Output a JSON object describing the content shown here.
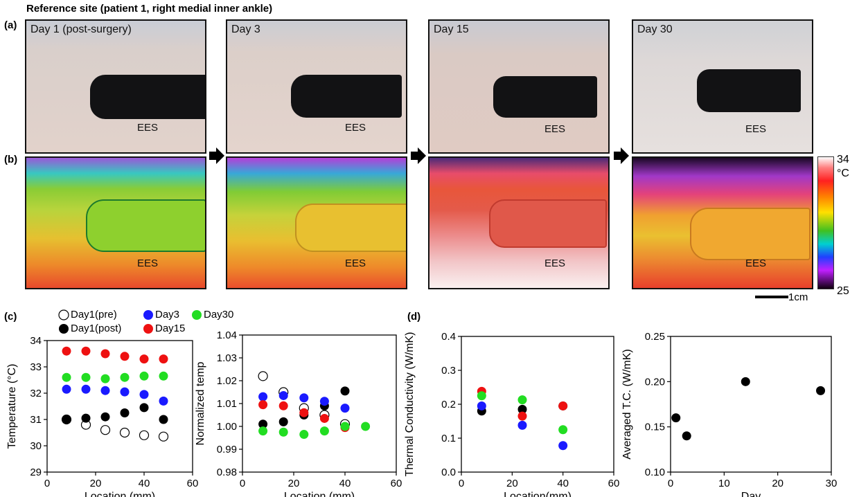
{
  "title": "Reference site (patient  1, right medial  inner ankle)",
  "labels": {
    "a": "(a)",
    "b": "(b)",
    "c": "(c)",
    "d": "(d)"
  },
  "photos": [
    {
      "day": "Day 1 (post-surgery)",
      "ees": "EES"
    },
    {
      "day": "Day 3",
      "ees": "EES"
    },
    {
      "day": "Day 15",
      "ees": "EES"
    },
    {
      "day": "Day 30",
      "ees": "EES"
    }
  ],
  "thermal_ees": "EES",
  "colorbar": {
    "max": "34",
    "unit": "°C",
    "min": "25"
  },
  "scalebar": "1cm",
  "legend": {
    "items": [
      "Day1(pre)",
      "Day3",
      "Day30",
      "Day1(post)",
      "Day15"
    ]
  },
  "chart_data": [
    {
      "type": "scatter",
      "xlabel": "Location (mm)",
      "ylabel": "Temperature (°C)",
      "xlim": [
        0,
        60
      ],
      "ylim": [
        29,
        34
      ],
      "xticks": [
        0,
        20,
        40,
        60
      ],
      "yticks": [
        29,
        30,
        31,
        32,
        33,
        34
      ],
      "series": [
        {
          "name": "Day1(pre)",
          "color": "#ffffff",
          "stroke": "#000000",
          "x": [
            8,
            16,
            24,
            32,
            40,
            48
          ],
          "y": [
            31.0,
            30.8,
            30.6,
            30.5,
            30.4,
            30.35
          ]
        },
        {
          "name": "Day1(post)",
          "color": "#000000",
          "x": [
            8,
            16,
            24,
            32,
            40,
            48
          ],
          "y": [
            31.0,
            31.05,
            31.1,
            31.25,
            31.45,
            31.0
          ]
        },
        {
          "name": "Day3",
          "color": "#1a1aff",
          "x": [
            8,
            16,
            24,
            32,
            40,
            48
          ],
          "y": [
            32.15,
            32.15,
            32.1,
            32.05,
            31.95,
            31.7
          ]
        },
        {
          "name": "Day15",
          "color": "#ee1111",
          "x": [
            8,
            16,
            24,
            32,
            40,
            48
          ],
          "y": [
            33.6,
            33.6,
            33.5,
            33.4,
            33.3,
            33.3
          ]
        },
        {
          "name": "Day30",
          "color": "#22dd22",
          "x": [
            8,
            16,
            24,
            32,
            40,
            48
          ],
          "y": [
            32.6,
            32.6,
            32.55,
            32.6,
            32.65,
            32.65
          ]
        }
      ]
    },
    {
      "type": "scatter",
      "xlabel": "Location (mm)",
      "ylabel": "Normalized temp",
      "xlim": [
        0,
        60
      ],
      "ylim": [
        0.98,
        1.04
      ],
      "xticks": [
        0,
        20,
        40,
        60
      ],
      "yticks": [
        0.98,
        0.99,
        1.0,
        1.01,
        1.02,
        1.03,
        1.04
      ],
      "series": [
        {
          "name": "Day1(pre)",
          "color": "#ffffff",
          "stroke": "#000000",
          "x": [
            8,
            16,
            24,
            32,
            40
          ],
          "y": [
            1.022,
            1.015,
            1.008,
            1.005,
            1.001
          ]
        },
        {
          "name": "Day1(post)",
          "color": "#000000",
          "x": [
            8,
            16,
            24,
            32,
            40
          ],
          "y": [
            1.001,
            1.002,
            1.005,
            1.009,
            1.0155
          ]
        },
        {
          "name": "Day3",
          "color": "#1a1aff",
          "x": [
            8,
            16,
            24,
            32,
            40
          ],
          "y": [
            1.013,
            1.0135,
            1.0125,
            1.011,
            1.008
          ]
        },
        {
          "name": "Day15",
          "color": "#ee1111",
          "x": [
            8,
            16,
            24,
            32,
            40
          ],
          "y": [
            1.0095,
            1.009,
            1.006,
            1.0035,
            0.9995
          ]
        },
        {
          "name": "Day30",
          "color": "#22dd22",
          "x": [
            8,
            16,
            24,
            32,
            40,
            48
          ],
          "y": [
            0.998,
            0.9975,
            0.9965,
            0.998,
            1.0,
            1.0
          ]
        }
      ]
    },
    {
      "type": "scatter",
      "xlabel": "Location(mm)",
      "ylabel": "Thermal Conductivity (W/mK)",
      "xlim": [
        0,
        60
      ],
      "ylim": [
        0.0,
        0.4
      ],
      "xticks": [
        0,
        20,
        40,
        60
      ],
      "yticks": [
        0.0,
        0.1,
        0.2,
        0.3,
        0.4
      ],
      "series": [
        {
          "name": "Day1(post)",
          "color": "#000000",
          "x": [
            8,
            24,
            40
          ],
          "y": [
            0.18,
            0.185,
            0.195
          ]
        },
        {
          "name": "Day3",
          "color": "#1a1aff",
          "x": [
            8,
            24,
            40
          ],
          "y": [
            0.195,
            0.138,
            0.078
          ]
        },
        {
          "name": "Day15",
          "color": "#ee1111",
          "x": [
            8,
            24,
            40
          ],
          "y": [
            0.238,
            0.165,
            0.195
          ]
        },
        {
          "name": "Day30",
          "color": "#22dd22",
          "x": [
            8,
            24,
            40
          ],
          "y": [
            0.225,
            0.213,
            0.125
          ]
        }
      ]
    },
    {
      "type": "scatter",
      "xlabel": "Day",
      "ylabel": "Averaged T.C. (W/mK)",
      "xlim": [
        0,
        30
      ],
      "ylim": [
        0.1,
        0.25
      ],
      "xticks": [
        0,
        10,
        20,
        30
      ],
      "yticks": [
        0.1,
        0.15,
        0.2,
        0.25
      ],
      "series": [
        {
          "name": "",
          "color": "#000000",
          "x": [
            1,
            3,
            14,
            28
          ],
          "y": [
            0.16,
            0.14,
            0.2,
            0.19
          ]
        }
      ]
    }
  ]
}
